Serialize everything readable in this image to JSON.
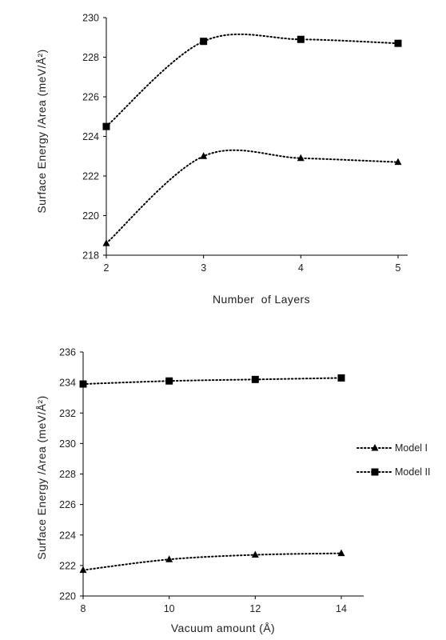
{
  "chart_data": [
    {
      "type": "line",
      "title": "",
      "xlabel": "Number  of Layers",
      "ylabel": "Surface Energy /Area (meV/Å²)",
      "x": [
        2,
        3,
        4,
        5
      ],
      "xlim": [
        2,
        5
      ],
      "ylim": [
        218,
        230
      ],
      "yticks": [
        218,
        220,
        222,
        224,
        226,
        228,
        230
      ],
      "grid": false,
      "line_style": "dotted smoothed",
      "series": [
        {
          "name": "Model I",
          "marker": "triangle",
          "values": [
            218.6,
            223.0,
            222.9,
            222.7
          ]
        },
        {
          "name": "Model II",
          "marker": "square",
          "values": [
            224.5,
            228.8,
            228.9,
            228.7
          ]
        }
      ]
    },
    {
      "type": "line",
      "title": "",
      "xlabel": "Vacuum amount (Å)",
      "ylabel": "Surface Energy /Area (meV/Å²)",
      "x": [
        8,
        10,
        12,
        14
      ],
      "xlim": [
        8,
        14
      ],
      "ylim": [
        220,
        236
      ],
      "yticks": [
        220,
        222,
        224,
        226,
        228,
        230,
        232,
        234,
        236
      ],
      "grid": false,
      "legend": "right",
      "line_style": "dotted smoothed",
      "series": [
        {
          "name": "Model I",
          "marker": "triangle",
          "values": [
            221.7,
            222.4,
            222.7,
            222.8
          ]
        },
        {
          "name": "Model II",
          "marker": "square",
          "values": [
            233.9,
            234.1,
            234.2,
            234.3
          ]
        }
      ]
    }
  ],
  "legend": {
    "items": [
      {
        "label": "Model I",
        "marker": "triangle"
      },
      {
        "label": "Model II",
        "marker": "square"
      }
    ]
  },
  "colors": {
    "series": "#000000",
    "axis": "#000000",
    "text": "#222222"
  }
}
